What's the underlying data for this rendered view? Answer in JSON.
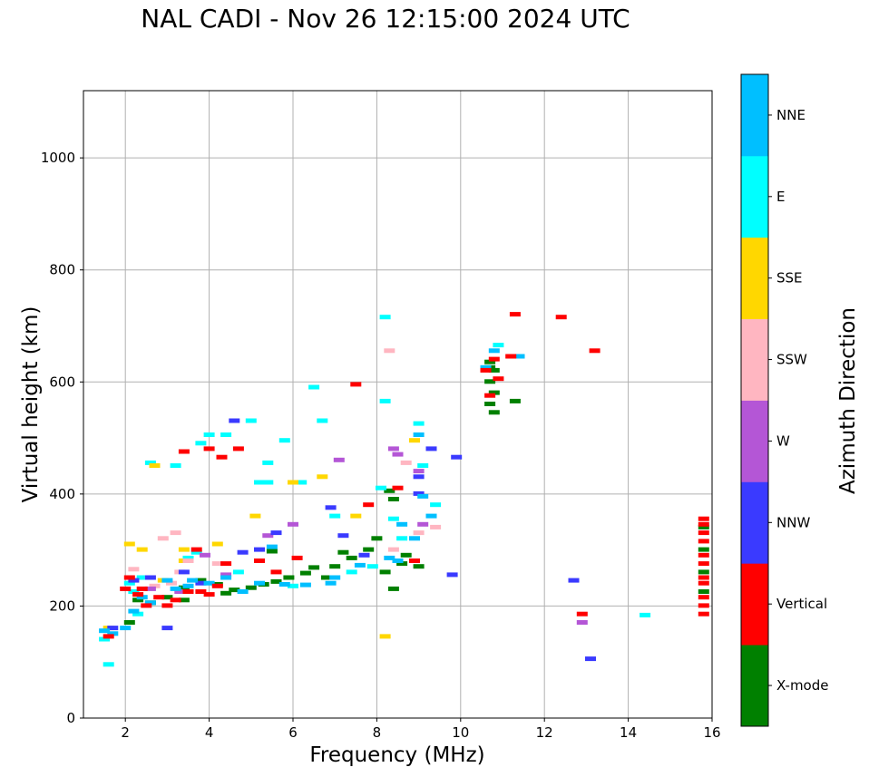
{
  "chart_data": {
    "type": "scatter",
    "title": "NAL CADI - Nov 26 12:15:00 2024 UTC",
    "xlabel": "Frequency (MHz)",
    "ylabel": "Virtual height (km)",
    "xlim": [
      1,
      16
    ],
    "ylim": [
      0,
      1120
    ],
    "xticks": [
      2,
      4,
      6,
      8,
      10,
      12,
      14,
      16
    ],
    "yticks": [
      0,
      200,
      400,
      600,
      800,
      1000
    ],
    "grid": true,
    "colorbar": {
      "label": "Azimuth Direction",
      "categories": [
        {
          "name": "X-mode",
          "color": "#008000"
        },
        {
          "name": "Vertical",
          "color": "#ff0000"
        },
        {
          "name": "NNW",
          "color": "#3a3aff"
        },
        {
          "name": "W",
          "color": "#b456d6"
        },
        {
          "name": "SSW",
          "color": "#ffb6c1"
        },
        {
          "name": "SSE",
          "color": "#ffd700"
        },
        {
          "name": "E",
          "color": "#00ffff"
        },
        {
          "name": "NNE",
          "color": "#00bfff"
        }
      ]
    },
    "series": [
      {
        "name": "X-mode",
        "points": [
          [
            2.1,
            170
          ],
          [
            2.3,
            210
          ],
          [
            2.6,
            205
          ],
          [
            3.0,
            215
          ],
          [
            3.4,
            232
          ],
          [
            3.8,
            245
          ],
          [
            4.2,
            238
          ],
          [
            4.6,
            228
          ],
          [
            5.0,
            232
          ],
          [
            5.3,
            238
          ],
          [
            5.6,
            243
          ],
          [
            5.9,
            250
          ],
          [
            6.3,
            258
          ],
          [
            6.8,
            250
          ],
          [
            7.0,
            270
          ],
          [
            7.4,
            285
          ],
          [
            7.8,
            300
          ],
          [
            8.0,
            320
          ],
          [
            8.2,
            260
          ],
          [
            8.3,
            405
          ],
          [
            8.4,
            390
          ],
          [
            8.6,
            275
          ],
          [
            8.7,
            290
          ],
          [
            9.0,
            270
          ],
          [
            10.7,
            635
          ],
          [
            10.8,
            620
          ],
          [
            10.7,
            600
          ],
          [
            10.8,
            580
          ],
          [
            10.7,
            560
          ],
          [
            10.8,
            545
          ],
          [
            10.7,
            625
          ],
          [
            11.3,
            565
          ],
          [
            15.8,
            340
          ],
          [
            15.8,
            300
          ],
          [
            15.8,
            260
          ],
          [
            15.8,
            225
          ],
          [
            3.4,
            210
          ],
          [
            4.4,
            222
          ],
          [
            5.5,
            297
          ],
          [
            6.5,
            268
          ],
          [
            7.2,
            295
          ],
          [
            8.4,
            230
          ]
        ]
      },
      {
        "name": "Vertical",
        "points": [
          [
            1.6,
            145
          ],
          [
            2.0,
            230
          ],
          [
            2.3,
            220
          ],
          [
            2.5,
            200
          ],
          [
            2.8,
            215
          ],
          [
            3.2,
            210
          ],
          [
            3.5,
            225
          ],
          [
            3.8,
            225
          ],
          [
            4.0,
            220
          ],
          [
            4.2,
            235
          ],
          [
            4.4,
            275
          ],
          [
            5.2,
            280
          ],
          [
            5.6,
            260
          ],
          [
            6.1,
            285
          ],
          [
            7.8,
            380
          ],
          [
            8.5,
            410
          ],
          [
            8.9,
            280
          ],
          [
            10.6,
            620
          ],
          [
            10.8,
            640
          ],
          [
            10.7,
            575
          ],
          [
            10.9,
            605
          ],
          [
            11.2,
            645
          ],
          [
            11.3,
            720
          ],
          [
            12.4,
            715
          ],
          [
            13.2,
            655
          ],
          [
            12.9,
            185
          ],
          [
            15.8,
            355
          ],
          [
            15.8,
            345
          ],
          [
            15.8,
            330
          ],
          [
            15.8,
            315
          ],
          [
            15.8,
            290
          ],
          [
            15.8,
            275
          ],
          [
            15.8,
            250
          ],
          [
            15.8,
            240
          ],
          [
            15.8,
            215
          ],
          [
            15.8,
            200
          ],
          [
            15.8,
            185
          ],
          [
            4.0,
            480
          ],
          [
            3.4,
            475
          ],
          [
            2.4,
            230
          ],
          [
            3.0,
            200
          ],
          [
            2.1,
            250
          ],
          [
            4.3,
            465
          ],
          [
            4.7,
            480
          ],
          [
            7.5,
            595
          ],
          [
            3.7,
            300
          ]
        ]
      },
      {
        "name": "NNW",
        "points": [
          [
            1.7,
            160
          ],
          [
            2.2,
            245
          ],
          [
            3.0,
            160
          ],
          [
            3.8,
            240
          ],
          [
            4.8,
            295
          ],
          [
            5.6,
            330
          ],
          [
            7.2,
            325
          ],
          [
            7.7,
            290
          ],
          [
            9.0,
            430
          ],
          [
            9.0,
            400
          ],
          [
            9.3,
            480
          ],
          [
            9.9,
            465
          ],
          [
            9.8,
            255
          ],
          [
            12.7,
            245
          ],
          [
            13.1,
            105
          ],
          [
            4.6,
            530
          ],
          [
            2.6,
            250
          ],
          [
            3.4,
            260
          ],
          [
            5.2,
            300
          ],
          [
            6.9,
            375
          ]
        ]
      },
      {
        "name": "W",
        "points": [
          [
            4.4,
            255
          ],
          [
            5.4,
            325
          ],
          [
            6.0,
            345
          ],
          [
            8.4,
            480
          ],
          [
            8.5,
            470
          ],
          [
            9.0,
            440
          ],
          [
            9.1,
            345
          ],
          [
            12.9,
            170
          ],
          [
            2.6,
            230
          ],
          [
            3.3,
            225
          ],
          [
            7.1,
            460
          ],
          [
            3.9,
            290
          ]
        ]
      },
      {
        "name": "SSW",
        "points": [
          [
            2.2,
            265
          ],
          [
            2.6,
            250
          ],
          [
            2.9,
            320
          ],
          [
            3.2,
            330
          ],
          [
            3.5,
            280
          ],
          [
            4.2,
            275
          ],
          [
            8.4,
            300
          ],
          [
            8.3,
            655
          ],
          [
            8.7,
            455
          ],
          [
            9.0,
            330
          ],
          [
            9.4,
            340
          ],
          [
            2.7,
            235
          ],
          [
            3.1,
            240
          ],
          [
            3.3,
            260
          ]
        ]
      },
      {
        "name": "SSE",
        "points": [
          [
            1.6,
            160
          ],
          [
            2.1,
            310
          ],
          [
            2.4,
            300
          ],
          [
            3.4,
            300
          ],
          [
            4.2,
            310
          ],
          [
            5.1,
            360
          ],
          [
            6.0,
            420
          ],
          [
            6.7,
            430
          ],
          [
            7.5,
            360
          ],
          [
            8.2,
            145
          ],
          [
            2.7,
            450
          ],
          [
            3.4,
            280
          ],
          [
            2.9,
            245
          ],
          [
            8.9,
            495
          ]
        ]
      },
      {
        "name": "E",
        "points": [
          [
            1.5,
            140
          ],
          [
            1.6,
            95
          ],
          [
            2.1,
            240
          ],
          [
            2.3,
            185
          ],
          [
            2.4,
            250
          ],
          [
            3.5,
            285
          ],
          [
            3.7,
            295
          ],
          [
            3.8,
            490
          ],
          [
            4.0,
            505
          ],
          [
            4.4,
            505
          ],
          [
            5.0,
            530
          ],
          [
            5.2,
            420
          ],
          [
            5.4,
            420
          ],
          [
            5.8,
            495
          ],
          [
            6.0,
            235
          ],
          [
            6.5,
            590
          ],
          [
            6.7,
            530
          ],
          [
            7.0,
            360
          ],
          [
            7.4,
            260
          ],
          [
            7.9,
            270
          ],
          [
            8.1,
            410
          ],
          [
            8.2,
            715
          ],
          [
            8.2,
            565
          ],
          [
            8.4,
            355
          ],
          [
            8.6,
            320
          ],
          [
            9.0,
            525
          ],
          [
            9.1,
            450
          ],
          [
            9.4,
            380
          ],
          [
            10.9,
            665
          ],
          [
            14.4,
            183
          ],
          [
            2.6,
            455
          ],
          [
            3.2,
            450
          ],
          [
            6.2,
            420
          ],
          [
            5.4,
            455
          ],
          [
            2.2,
            225
          ],
          [
            4.7,
            260
          ]
        ]
      },
      {
        "name": "NNE",
        "points": [
          [
            1.5,
            155
          ],
          [
            1.7,
            150
          ],
          [
            2.0,
            160
          ],
          [
            2.2,
            190
          ],
          [
            2.6,
            205
          ],
          [
            3.0,
            245
          ],
          [
            3.2,
            230
          ],
          [
            3.6,
            245
          ],
          [
            4.0,
            240
          ],
          [
            4.4,
            250
          ],
          [
            4.8,
            225
          ],
          [
            5.2,
            240
          ],
          [
            5.8,
            238
          ],
          [
            6.3,
            237
          ],
          [
            7.0,
            250
          ],
          [
            7.6,
            272
          ],
          [
            8.3,
            285
          ],
          [
            8.5,
            280
          ],
          [
            8.6,
            345
          ],
          [
            8.9,
            320
          ],
          [
            9.0,
            505
          ],
          [
            9.3,
            360
          ],
          [
            9.1,
            395
          ],
          [
            10.6,
            625
          ],
          [
            10.8,
            655
          ],
          [
            11.4,
            645
          ],
          [
            2.4,
            215
          ],
          [
            3.5,
            235
          ],
          [
            5.5,
            305
          ],
          [
            6.9,
            240
          ]
        ]
      }
    ]
  }
}
